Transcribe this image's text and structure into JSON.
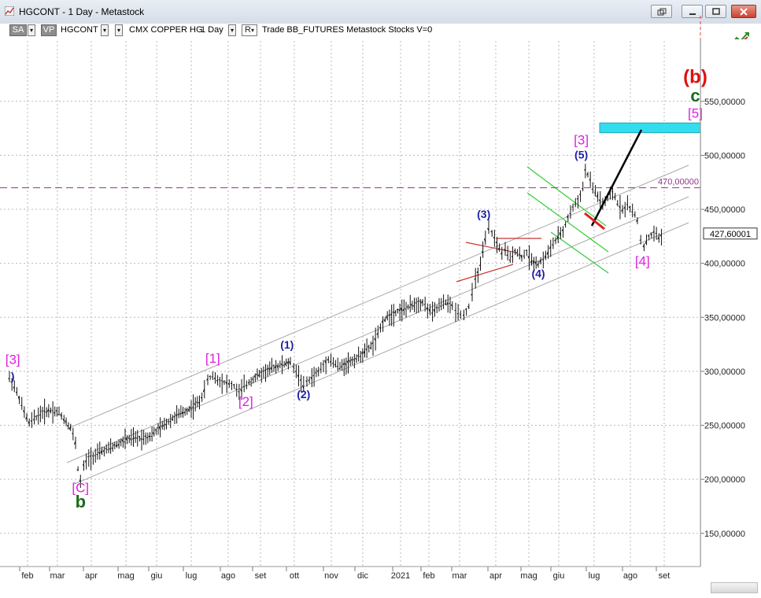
{
  "window": {
    "title": "HGCONT - 1 Day - Metastock",
    "controls": [
      "restore-icon",
      "minimize-icon",
      "maximize-icon",
      "close-icon"
    ]
  },
  "toolbar": {
    "sa_label": "SA",
    "vp_label": "VP",
    "symbol": "HGCONT",
    "drop_arrow": "▾",
    "security_name": "CMX COPPER HG",
    "period": "1 Day",
    "r_label": "R",
    "info": "Trade  BB_FUTURES  Metastock  Stocks  V=0"
  },
  "colors": {
    "wave_blue": "#1f1fa6",
    "wave_magenta": "#e020e0",
    "wave_green": "#1a6b1a",
    "wave_red": "#e01010",
    "target_box": "#33ddee",
    "price_dashed": "#8a3a8a",
    "flag_channel": "#33cc33",
    "triangle": "#cc3333"
  },
  "chart_data": {
    "type": "line",
    "title": "",
    "x_tick_labels": [
      "feb",
      "mar",
      "apr",
      "mag",
      "giu",
      "lug",
      "ago",
      "set",
      "ott",
      "nov",
      "dic",
      "2021",
      "feb",
      "mar",
      "apr",
      "mag",
      "giu",
      "lug",
      "ago",
      "set"
    ],
    "y_tick_labels": [
      "150,00000",
      "200,00000",
      "250,00000",
      "300,00000",
      "350,00000",
      "400,00000",
      "450,00000",
      "500,00000",
      "550,00000"
    ],
    "ylim": [
      125,
      600
    ],
    "grid": true,
    "horizontal_line": {
      "value": 470,
      "label": "470,00000"
    },
    "last_price": {
      "value": 427.6,
      "label": "427,60001"
    },
    "series": [
      {
        "values": [
          [
            0.0,
            294
          ],
          [
            0.3,
            286
          ],
          [
            0.6,
            275
          ],
          [
            0.9,
            262
          ],
          [
            1.2,
            252
          ],
          [
            1.5,
            256
          ],
          [
            2.0,
            262
          ],
          [
            2.5,
            264
          ],
          [
            3.0,
            262
          ],
          [
            3.3,
            256
          ],
          [
            3.7,
            248
          ],
          [
            4.0,
            234
          ],
          [
            4.15,
            210
          ],
          [
            4.3,
            198
          ],
          [
            4.5,
            212
          ],
          [
            4.8,
            220
          ],
          [
            5.2,
            222
          ],
          [
            5.6,
            226
          ],
          [
            6.0,
            228
          ],
          [
            6.5,
            232
          ],
          [
            7.0,
            236
          ],
          [
            7.5,
            238
          ],
          [
            8.0,
            238
          ],
          [
            8.5,
            240
          ],
          [
            9.0,
            246
          ],
          [
            9.5,
            252
          ],
          [
            10.0,
            258
          ],
          [
            10.5,
            262
          ],
          [
            11.0,
            266
          ],
          [
            11.5,
            272
          ],
          [
            11.8,
            282
          ],
          [
            12.0,
            292
          ],
          [
            12.3,
            296
          ],
          [
            12.6,
            292
          ],
          [
            13.0,
            290
          ],
          [
            13.3,
            288
          ],
          [
            13.6,
            286
          ],
          [
            13.9,
            280
          ],
          [
            14.2,
            286
          ],
          [
            14.5,
            290
          ],
          [
            15.0,
            296
          ],
          [
            15.5,
            300
          ],
          [
            16.0,
            304
          ],
          [
            16.5,
            306
          ],
          [
            17.0,
            308
          ],
          [
            17.2,
            304
          ],
          [
            17.5,
            296
          ],
          [
            17.8,
            286
          ],
          [
            18.0,
            290
          ],
          [
            18.3,
            294
          ],
          [
            18.7,
            300
          ],
          [
            19.0,
            305
          ],
          [
            19.3,
            312
          ],
          [
            19.6,
            308
          ],
          [
            20.0,
            304
          ],
          [
            20.5,
            308
          ],
          [
            21.0,
            312
          ],
          [
            21.5,
            318
          ],
          [
            22.0,
            325
          ],
          [
            22.3,
            334
          ],
          [
            22.6,
            346
          ],
          [
            23.0,
            352
          ],
          [
            23.5,
            356
          ],
          [
            24.0,
            358
          ],
          [
            24.5,
            362
          ],
          [
            25.0,
            364
          ],
          [
            25.3,
            358
          ],
          [
            25.6,
            354
          ],
          [
            26.0,
            360
          ],
          [
            26.4,
            364
          ],
          [
            26.8,
            360
          ],
          [
            27.0,
            356
          ],
          [
            27.3,
            354
          ],
          [
            27.5,
            352
          ],
          [
            27.8,
            360
          ],
          [
            28.0,
            372
          ],
          [
            28.2,
            385
          ],
          [
            28.5,
            398
          ],
          [
            28.8,
            422
          ],
          [
            29.0,
            432
          ],
          [
            29.2,
            428
          ],
          [
            29.5,
            418
          ],
          [
            29.8,
            410
          ],
          [
            30.0,
            412
          ],
          [
            30.3,
            404
          ],
          [
            30.6,
            412
          ],
          [
            31.0,
            406
          ],
          [
            31.3,
            410
          ],
          [
            31.6,
            402
          ],
          [
            32.0,
            400
          ],
          [
            32.3,
            404
          ],
          [
            32.6,
            410
          ],
          [
            32.9,
            418
          ],
          [
            33.2,
            424
          ],
          [
            33.5,
            430
          ],
          [
            33.8,
            442
          ],
          [
            34.1,
            452
          ],
          [
            34.4,
            458
          ],
          [
            34.7,
            470
          ],
          [
            34.85,
            486
          ],
          [
            35.0,
            482
          ],
          [
            35.3,
            470
          ],
          [
            35.6,
            462
          ],
          [
            35.9,
            454
          ],
          [
            36.2,
            460
          ],
          [
            36.5,
            466
          ],
          [
            36.8,
            456
          ],
          [
            37.1,
            450
          ],
          [
            37.4,
            454
          ],
          [
            37.7,
            448
          ],
          [
            38.0,
            440
          ],
          [
            38.2,
            422
          ],
          [
            38.4,
            416
          ],
          [
            38.7,
            424
          ],
          [
            39.0,
            428
          ],
          [
            39.3,
            424
          ],
          [
            39.6,
            426
          ]
        ]
      }
    ],
    "wave_labels": [
      {
        "text": "[3]",
        "color": "magenta",
        "x": 0.2,
        "y": 307
      },
      {
        "text": ")",
        "color": "blue",
        "x": 0.2,
        "y": 292
      },
      {
        "text": "[C]",
        "color": "magenta",
        "x": 4.3,
        "y": 188
      },
      {
        "text": "b",
        "color": "green",
        "x": 4.3,
        "y": 174
      },
      {
        "text": "[1]",
        "color": "magenta",
        "x": 12.3,
        "y": 308
      },
      {
        "text": "[2]",
        "color": "magenta",
        "x": 14.3,
        "y": 268
      },
      {
        "text": "(1)",
        "color": "blue",
        "x": 16.8,
        "y": 321
      },
      {
        "text": "(2)",
        "color": "blue",
        "x": 17.8,
        "y": 275
      },
      {
        "text": "(3)",
        "color": "blue",
        "x": 28.7,
        "y": 442
      },
      {
        "text": "(4)",
        "color": "blue",
        "x": 32.0,
        "y": 387
      },
      {
        "text": "(5)",
        "color": "blue",
        "x": 34.6,
        "y": 497
      },
      {
        "text": "[3]",
        "color": "magenta",
        "x": 34.6,
        "y": 510
      },
      {
        "text": "[4]",
        "color": "magenta",
        "x": 38.3,
        "y": 398
      },
      {
        "text": "[5]",
        "color": "magenta",
        "x": 41.5,
        "y": 535
      },
      {
        "text": "c",
        "color": "green",
        "x": 41.5,
        "y": 550
      },
      {
        "text": "(b)",
        "color": "red",
        "x": 41.5,
        "y": 567
      }
    ]
  }
}
